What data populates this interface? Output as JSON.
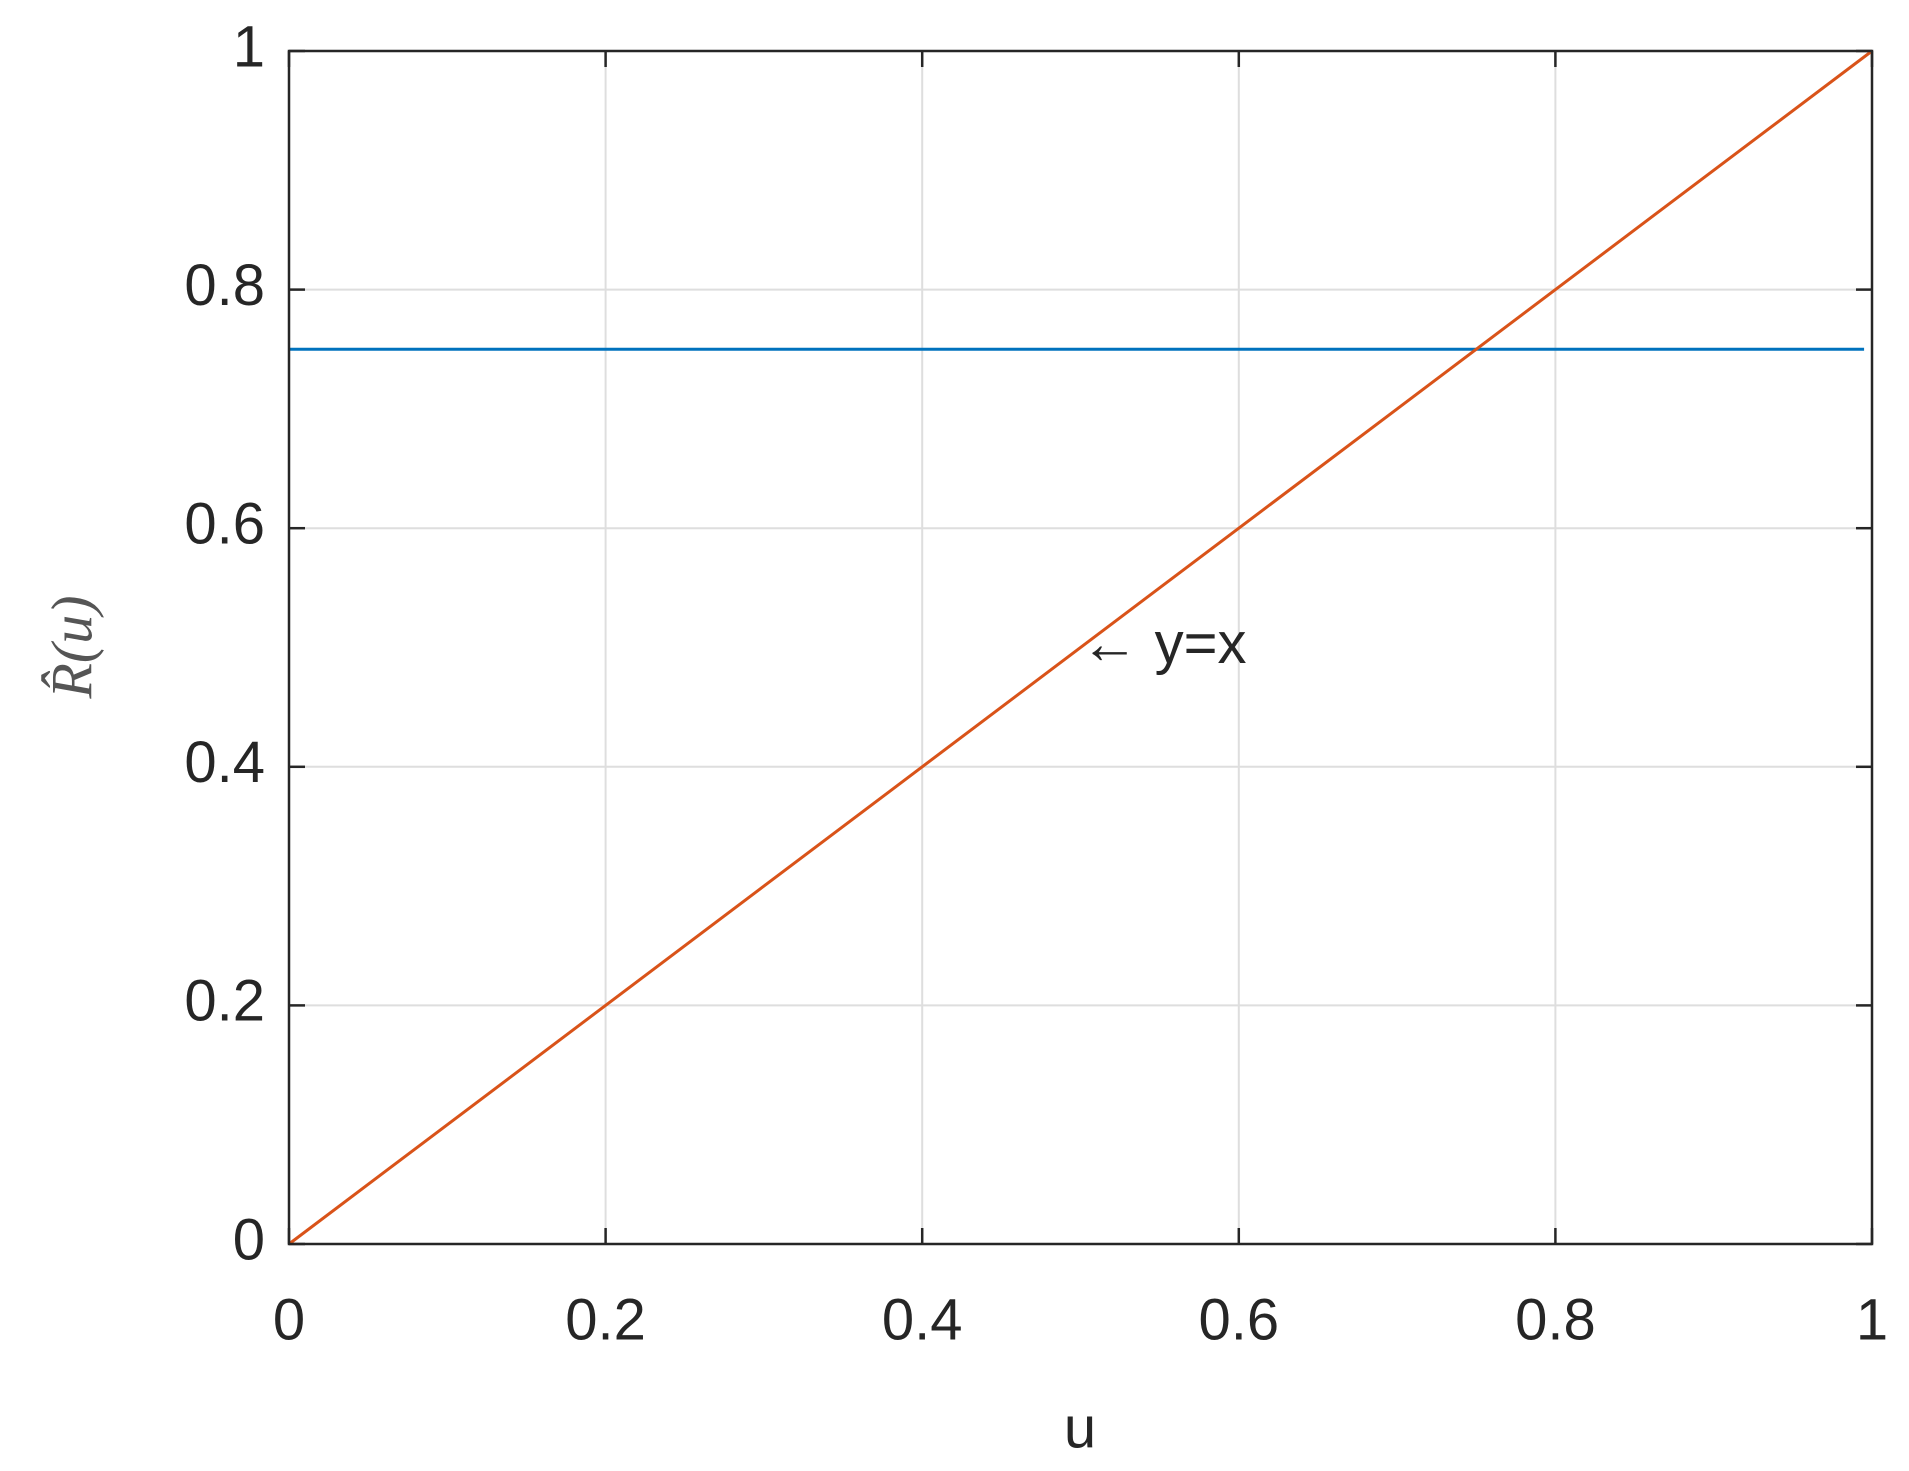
{
  "chart_data": {
    "type": "line",
    "xlabel": "u",
    "ylabel": "R̂(u)",
    "series": [
      {
        "color": "#0072bd",
        "x": [
          0,
          0.995
        ],
        "values": [
          0.75,
          0.75
        ]
      },
      {
        "color": "#d95319",
        "x": [
          0,
          1
        ],
        "values": [
          0,
          1
        ]
      }
    ],
    "annotations": [
      {
        "text": "← y=x",
        "x": 0.5,
        "y": 0.5
      }
    ],
    "xlim": [
      0,
      1
    ],
    "ylim": [
      0,
      1
    ],
    "xticks": [
      0,
      0.2,
      0.4,
      0.6,
      0.8,
      1
    ],
    "yticks": [
      0,
      0.2,
      0.4,
      0.6,
      0.8,
      1
    ],
    "grid": true
  }
}
